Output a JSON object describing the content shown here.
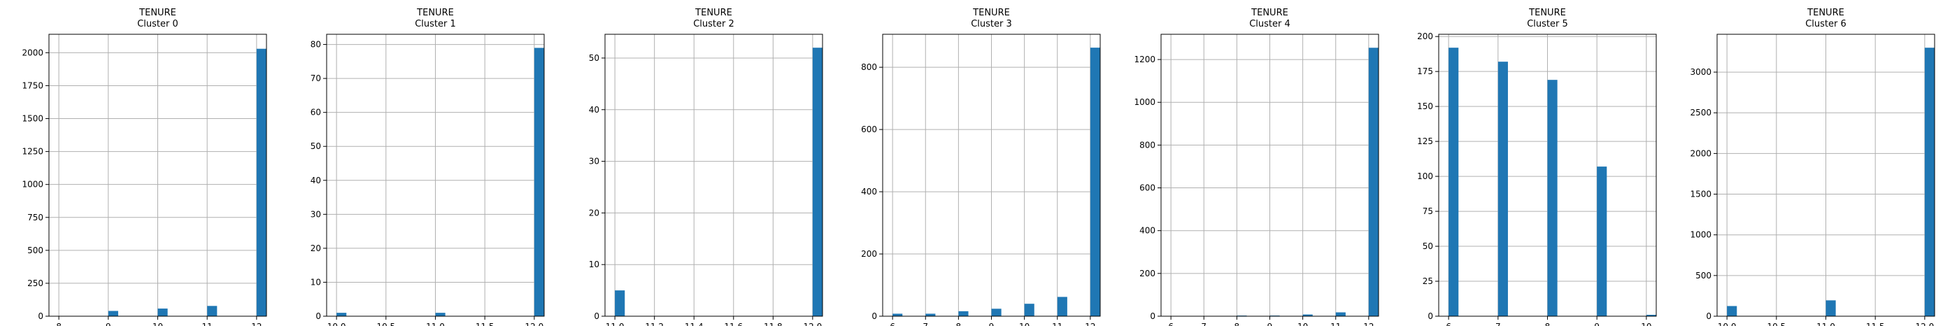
{
  "chart_data": [
    {
      "type": "bar",
      "title": "TENURE\nCluster 0",
      "xlim": [
        7.8,
        12.2
      ],
      "ylim": [
        0,
        2140
      ],
      "xticks": [
        8,
        9,
        10,
        11,
        12
      ],
      "xtick_labels": [
        "8",
        "9",
        "10",
        "11",
        "12"
      ],
      "yticks": [
        0,
        250,
        500,
        750,
        1000,
        1250,
        1500,
        1750,
        2000
      ],
      "ytick_labels": [
        "0",
        "250",
        "500",
        "750",
        "1000",
        "1250",
        "1500",
        "1750",
        "2000"
      ],
      "bin_width": 0.2,
      "bars": [
        {
          "x": 9,
          "value": 40
        },
        {
          "x": 10,
          "value": 58
        },
        {
          "x": 11,
          "value": 78
        },
        {
          "x": 12,
          "value": 2030
        }
      ],
      "grid": true,
      "color": "#1f77b4"
    },
    {
      "type": "bar",
      "title": "TENURE\nCluster 1",
      "xlim": [
        9.9,
        12.1
      ],
      "ylim": [
        0,
        83
      ],
      "xticks": [
        10,
        10.5,
        11,
        11.5,
        12
      ],
      "xtick_labels": [
        "10.0",
        "10.5",
        "11.0",
        "11.5",
        "12.0"
      ],
      "yticks": [
        0,
        10,
        20,
        30,
        40,
        50,
        60,
        70,
        80
      ],
      "ytick_labels": [
        "0",
        "10",
        "20",
        "30",
        "40",
        "50",
        "60",
        "70",
        "80"
      ],
      "bin_width": 0.1,
      "bars": [
        {
          "x": 10,
          "value": 1
        },
        {
          "x": 11,
          "value": 1
        },
        {
          "x": 12,
          "value": 79
        }
      ],
      "grid": true,
      "color": "#1f77b4"
    },
    {
      "type": "bar",
      "title": "TENURE\nCluster 2",
      "xlim": [
        10.95,
        12.05
      ],
      "ylim": [
        0,
        54.6
      ],
      "xticks": [
        11,
        11.2,
        11.4,
        11.6,
        11.8,
        12
      ],
      "xtick_labels": [
        "11.0",
        "11.2",
        "11.4",
        "11.6",
        "11.8",
        "12.0"
      ],
      "yticks": [
        0,
        10,
        20,
        30,
        40,
        50
      ],
      "ytick_labels": [
        "0",
        "10",
        "20",
        "30",
        "40",
        "50"
      ],
      "bin_width": 0.05,
      "bars": [
        {
          "x": 11,
          "value": 5
        },
        {
          "x": 12,
          "value": 52
        }
      ],
      "grid": true,
      "color": "#1f77b4"
    },
    {
      "type": "bar",
      "title": "TENURE\nCluster 3",
      "xlim": [
        5.7,
        12.3
      ],
      "ylim": [
        0,
        906
      ],
      "xticks": [
        6,
        7,
        8,
        9,
        10,
        11,
        12
      ],
      "xtick_labels": [
        "6",
        "7",
        "8",
        "9",
        "10",
        "11",
        "12"
      ],
      "yticks": [
        0,
        200,
        400,
        600,
        800
      ],
      "ytick_labels": [
        "0",
        "200",
        "400",
        "600",
        "800"
      ],
      "bin_width": 0.3,
      "bars": [
        {
          "x": 6,
          "value": 8
        },
        {
          "x": 7,
          "value": 8
        },
        {
          "x": 8,
          "value": 16
        },
        {
          "x": 9,
          "value": 24
        },
        {
          "x": 10,
          "value": 40
        },
        {
          "x": 11,
          "value": 62
        },
        {
          "x": 12,
          "value": 863
        }
      ],
      "grid": true,
      "color": "#1f77b4"
    },
    {
      "type": "bar",
      "title": "TENURE\nCluster 4",
      "xlim": [
        5.7,
        12.3
      ],
      "ylim": [
        0,
        1318
      ],
      "xticks": [
        6,
        7,
        8,
        9,
        10,
        11,
        12
      ],
      "xtick_labels": [
        "6",
        "7",
        "8",
        "9",
        "10",
        "11",
        "12"
      ],
      "yticks": [
        0,
        200,
        400,
        600,
        800,
        1000,
        1200
      ],
      "ytick_labels": [
        "0",
        "200",
        "400",
        "600",
        "800",
        "1000",
        "1200"
      ],
      "bin_width": 0.3,
      "bars": [
        {
          "x": 8,
          "value": 3
        },
        {
          "x": 9,
          "value": 3
        },
        {
          "x": 10,
          "value": 8
        },
        {
          "x": 11,
          "value": 18
        },
        {
          "x": 12,
          "value": 1255
        }
      ],
      "grid": true,
      "color": "#1f77b4"
    },
    {
      "type": "bar",
      "title": "TENURE\nCluster 5",
      "xlim": [
        5.8,
        10.2
      ],
      "ylim": [
        0,
        201.6
      ],
      "xticks": [
        6,
        7,
        8,
        9,
        10
      ],
      "xtick_labels": [
        "6",
        "7",
        "8",
        "9",
        "10"
      ],
      "yticks": [
        0,
        25,
        50,
        75,
        100,
        125,
        150,
        175,
        200
      ],
      "ytick_labels": [
        "0",
        "25",
        "50",
        "75",
        "100",
        "125",
        "150",
        "175",
        "200"
      ],
      "bin_width": 0.2,
      "bars": [
        {
          "x": 6,
          "value": 192
        },
        {
          "x": 7,
          "value": 182
        },
        {
          "x": 8,
          "value": 169
        },
        {
          "x": 9,
          "value": 107
        },
        {
          "x": 10,
          "value": 1
        }
      ],
      "grid": true,
      "color": "#1f77b4"
    },
    {
      "type": "bar",
      "title": "TENURE\nCluster 6",
      "xlim": [
        9.9,
        12.1
      ],
      "ylim": [
        0,
        3465
      ],
      "xticks": [
        10,
        10.5,
        11,
        11.5,
        12
      ],
      "xtick_labels": [
        "10.0",
        "10.5",
        "11.0",
        "11.5",
        "12.0"
      ],
      "yticks": [
        0,
        500,
        1000,
        1500,
        2000,
        2500,
        3000
      ],
      "ytick_labels": [
        "0",
        "500",
        "1000",
        "1500",
        "2000",
        "2500",
        "3000"
      ],
      "bin_width": 0.1,
      "bars": [
        {
          "x": 10,
          "value": 125
        },
        {
          "x": 11,
          "value": 195
        },
        {
          "x": 12,
          "value": 3300
        }
      ],
      "grid": true,
      "color": "#1f77b4"
    }
  ]
}
